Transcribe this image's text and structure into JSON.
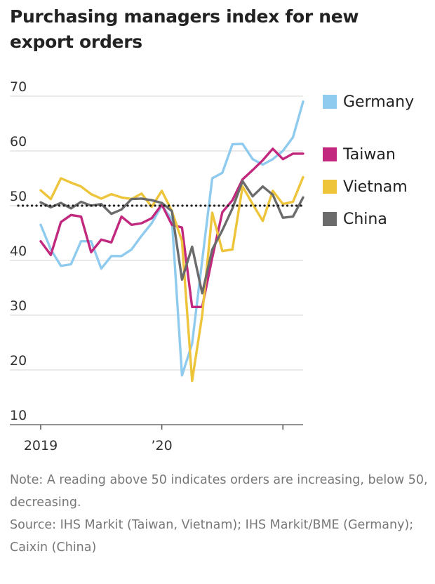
{
  "title": "Purchasing managers index for new export orders",
  "note": "Note: A reading above 50 indicates orders are increasing, below 50, decreasing.",
  "source": "Source: IHS Markit (Taiwan, Vietnam); IHS Markit/BME (Germany); Caixin (China)",
  "chart_data": {
    "type": "line",
    "title": "Purchasing managers index for new export orders",
    "xlabel": "",
    "ylabel": "",
    "ylim": [
      10,
      70
    ],
    "yticks": [
      10,
      20,
      30,
      40,
      50,
      60,
      70
    ],
    "xtick_labels": [
      "2019",
      "’20"
    ],
    "reference_line": 50,
    "grid": "horizontal",
    "legend_placement": "right",
    "x": [
      "2019-01",
      "2019-02",
      "2019-03",
      "2019-04",
      "2019-05",
      "2019-06",
      "2019-07",
      "2019-08",
      "2019-09",
      "2019-10",
      "2019-11",
      "2019-12",
      "2020-01",
      "2020-02",
      "2020-03",
      "2020-04",
      "2020-05",
      "2020-06",
      "2020-07",
      "2020-08",
      "2020-09",
      "2020-10",
      "2020-11",
      "2020-12",
      "2021-01",
      "2021-02",
      "2021-03"
    ],
    "series": [
      {
        "name": "Germany",
        "color": "#8fcbee",
        "values": [
          46.5,
          42.0,
          39.0,
          39.3,
          43.5,
          43.5,
          38.5,
          40.8,
          40.8,
          42.0,
          44.5,
          46.8,
          50.0,
          47.5,
          19.0,
          24.8,
          40.0,
          55.0,
          56.0,
          61.2,
          61.3,
          58.5,
          57.5,
          58.5,
          60.0,
          62.5,
          69.0
        ]
      },
      {
        "name": "Taiwan",
        "color": "#c2297e",
        "values": [
          43.5,
          41.0,
          47.0,
          48.3,
          48.0,
          41.5,
          43.8,
          43.3,
          48.0,
          46.5,
          46.8,
          47.7,
          50.2,
          46.5,
          46.0,
          31.5,
          31.5,
          40.5,
          48.8,
          51.0,
          54.8,
          56.5,
          58.3,
          60.4,
          58.5,
          59.5,
          59.5
        ]
      },
      {
        "name": "Vietnam",
        "color": "#eec43a",
        "values": [
          52.8,
          51.2,
          55.0,
          54.2,
          53.5,
          52.1,
          51.3,
          52.1,
          51.5,
          51.2,
          52.2,
          49.8,
          52.7,
          49.0,
          43.5,
          18.0,
          30.0,
          48.7,
          41.7,
          42.0,
          53.5,
          50.3,
          47.2,
          52.7,
          50.3,
          50.7,
          55.2
        ]
      },
      {
        "name": "China",
        "color": "#6b6b6b",
        "values": [
          50.6,
          49.7,
          50.5,
          49.5,
          50.7,
          50.0,
          50.3,
          48.5,
          49.3,
          51.2,
          51.3,
          51.0,
          50.5,
          49.0,
          36.5,
          42.5,
          34.0,
          42.0,
          45.5,
          49.5,
          54.5,
          51.7,
          53.5,
          52.0,
          47.8,
          48.0,
          51.5
        ]
      }
    ]
  }
}
